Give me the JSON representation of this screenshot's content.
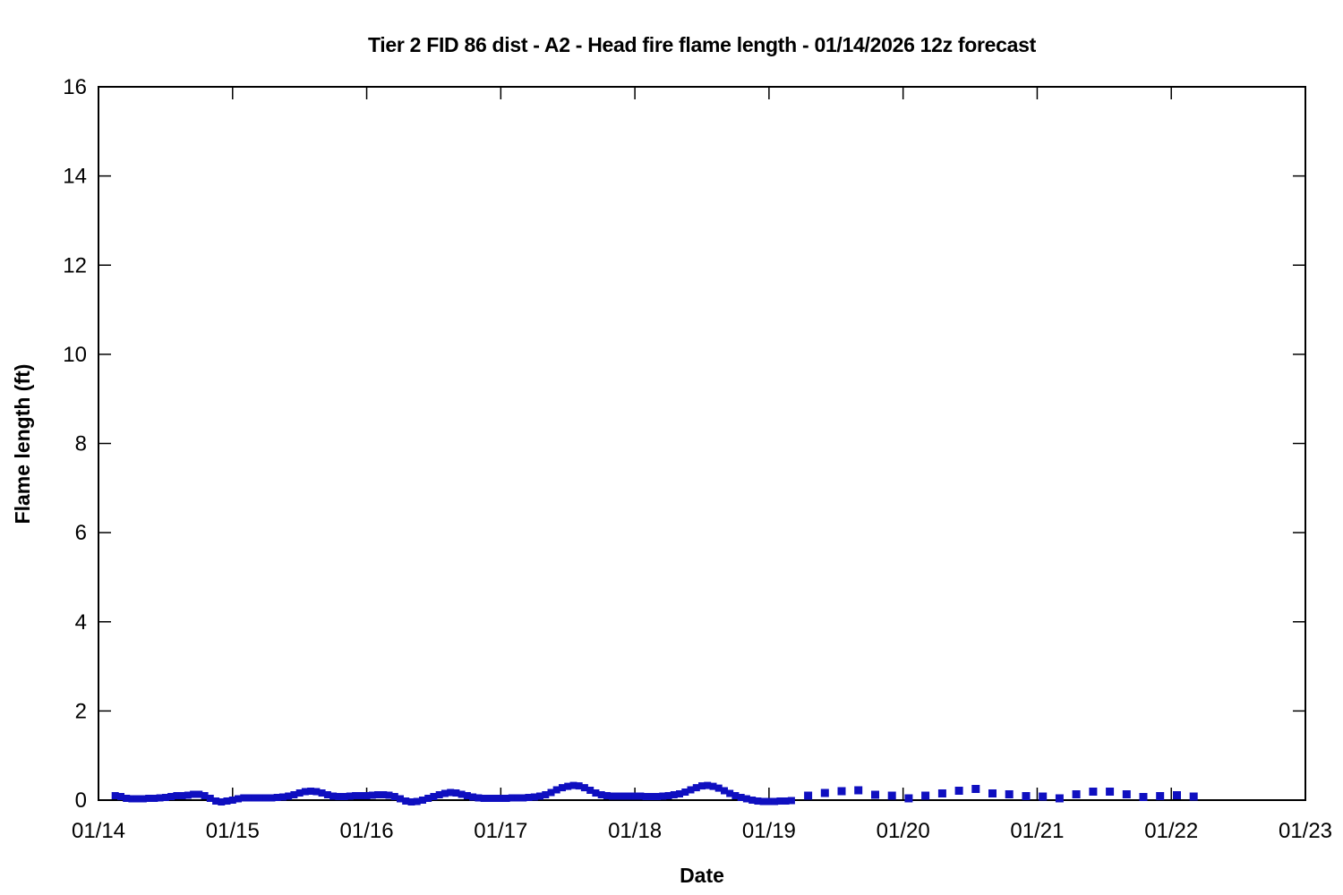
{
  "page": {
    "background_color": "#ffffff",
    "axis_color": "#000000"
  },
  "chart_data": {
    "type": "line",
    "title": "Tier 2 FID 86 dist - A2 - Head fire flame length - 01/14/2026 12z forecast",
    "xlabel": "Date",
    "ylabel": "Flame length (ft)",
    "grid": false,
    "legend": null,
    "x_axis": {
      "tick_labels": [
        "01/14",
        "01/15",
        "01/16",
        "01/17",
        "01/18",
        "01/19",
        "01/20",
        "01/21",
        "01/22",
        "01/23"
      ],
      "hours_per_tick": 24,
      "range_hours": [
        0,
        216
      ]
    },
    "y_axis": {
      "ticks": [
        0,
        2,
        4,
        6,
        8,
        10,
        12,
        14,
        16
      ],
      "range": [
        0,
        16
      ]
    },
    "series": [
      {
        "name": "flame-length-analysis",
        "style": "solid-thick-line-with-square-markers",
        "color": "#0f0fc0",
        "marker_size": 8,
        "line_width": 5,
        "x_start_hour": 3,
        "x_step_hours": 1,
        "values": [
          0.1,
          0.08,
          0.04,
          0.03,
          0.03,
          0.03,
          0.04,
          0.04,
          0.05,
          0.06,
          0.08,
          0.1,
          0.1,
          0.11,
          0.13,
          0.13,
          0.1,
          0.04,
          -0.02,
          -0.04,
          -0.02,
          0.0,
          0.03,
          0.05,
          0.05,
          0.05,
          0.05,
          0.05,
          0.05,
          0.06,
          0.07,
          0.09,
          0.12,
          0.16,
          0.19,
          0.2,
          0.19,
          0.16,
          0.12,
          0.09,
          0.08,
          0.08,
          0.09,
          0.1,
          0.1,
          0.1,
          0.11,
          0.12,
          0.12,
          0.11,
          0.08,
          0.03,
          -0.02,
          -0.04,
          -0.03,
          0.0,
          0.04,
          0.08,
          0.12,
          0.15,
          0.17,
          0.16,
          0.13,
          0.1,
          0.07,
          0.05,
          0.04,
          0.04,
          0.04,
          0.04,
          0.04,
          0.05,
          0.05,
          0.05,
          0.06,
          0.07,
          0.09,
          0.12,
          0.17,
          0.23,
          0.28,
          0.31,
          0.33,
          0.32,
          0.28,
          0.22,
          0.16,
          0.12,
          0.1,
          0.09,
          0.09,
          0.09,
          0.09,
          0.09,
          0.09,
          0.08,
          0.08,
          0.08,
          0.09,
          0.1,
          0.12,
          0.14,
          0.18,
          0.23,
          0.28,
          0.32,
          0.33,
          0.31,
          0.27,
          0.21,
          0.15,
          0.1,
          0.06,
          0.03,
          0.0,
          -0.02,
          -0.03,
          -0.03,
          -0.03,
          -0.02,
          -0.02,
          -0.01
        ]
      },
      {
        "name": "flame-length-forecast",
        "style": "dotted-square-markers",
        "color": "#0f0fc0",
        "marker_size": 9,
        "line_width": 0,
        "x_start_hour": 127,
        "x_step_hours": 3,
        "values": [
          0.1,
          0.16,
          0.2,
          0.22,
          0.12,
          0.1,
          0.04,
          0.1,
          0.15,
          0.21,
          0.25,
          0.15,
          0.13,
          0.09,
          0.08,
          0.04,
          0.13,
          0.19,
          0.19,
          0.13,
          0.07,
          0.09,
          0.11,
          0.08
        ]
      }
    ]
  }
}
